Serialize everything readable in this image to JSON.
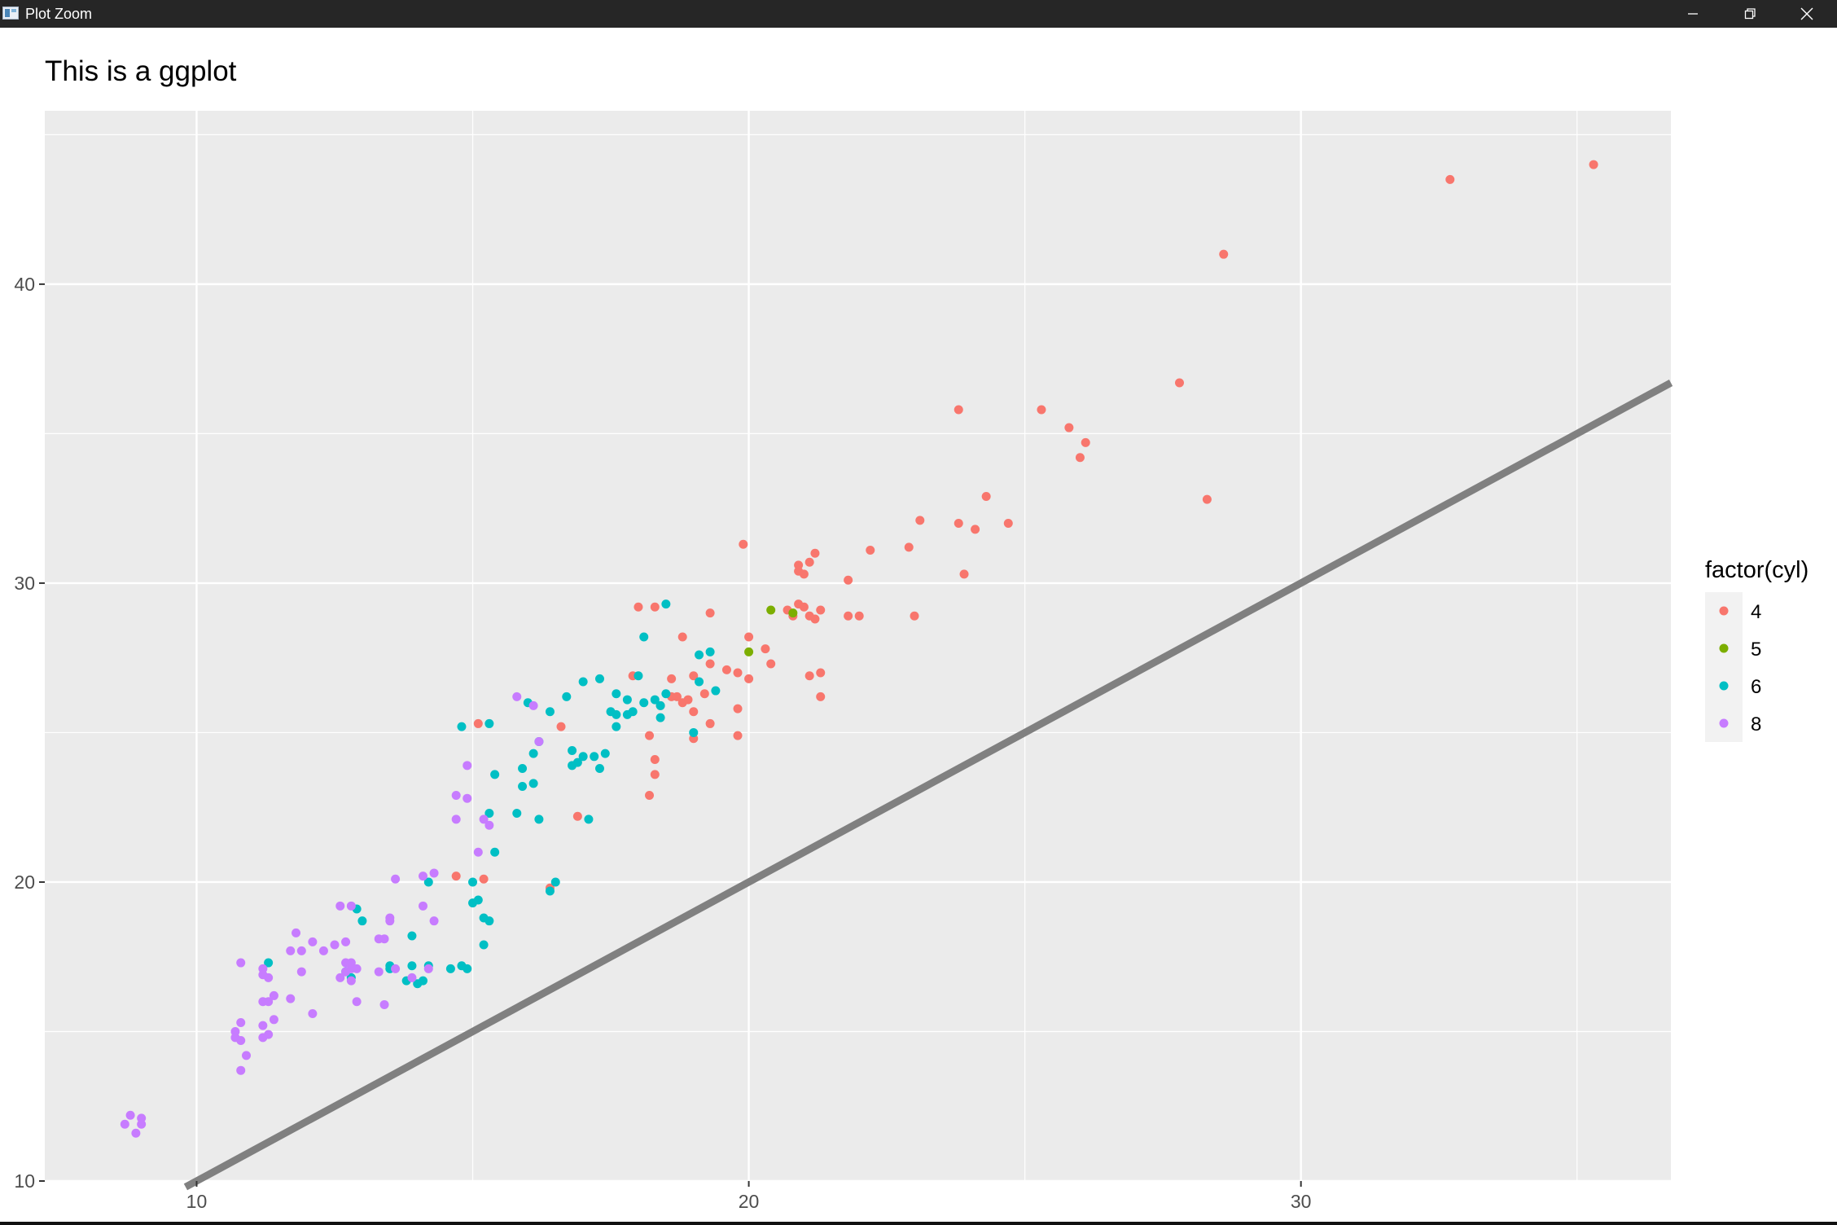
{
  "window": {
    "title": "Plot Zoom",
    "controls": {
      "minimize_icon": "minimize-icon",
      "maximize_icon": "restore-icon",
      "close_icon": "close-icon"
    }
  },
  "colors": {
    "panel": "#EBEBEB",
    "grid": "#FFFFFF",
    "line": "#808080",
    "axis_text": "#4D4D4D"
  },
  "chart_data": {
    "type": "scatter",
    "title": "This is a ggplot",
    "subtitle": "",
    "xlabel": "",
    "ylabel": "",
    "xlim": [
      7.25,
      36.7
    ],
    "ylim": [
      10,
      45.8
    ],
    "xticks": [
      10,
      20,
      30
    ],
    "yticks": [
      10,
      20,
      30,
      40
    ],
    "grid": true,
    "reference_line": {
      "slope": 1,
      "intercept": 0,
      "color": "#808080",
      "from": [
        9.8,
        9.8
      ],
      "to": [
        36.7,
        36.7
      ]
    },
    "legend": {
      "title": "factor(cyl)",
      "position": "right",
      "entries": [
        {
          "label": "4",
          "color": "#F8766D"
        },
        {
          "label": "5",
          "color": "#7CAE00"
        },
        {
          "label": "6",
          "color": "#00BFC4"
        },
        {
          "label": "8",
          "color": "#C77CFF"
        }
      ]
    },
    "series": [
      {
        "name": "4",
        "color": "#F8766D",
        "points": [
          [
            35.3,
            44.0
          ],
          [
            32.7,
            43.5
          ],
          [
            28.6,
            41.0
          ],
          [
            27.8,
            36.7
          ],
          [
            28.3,
            32.8
          ],
          [
            23.8,
            35.8
          ],
          [
            25.3,
            35.8
          ],
          [
            25.8,
            35.2
          ],
          [
            26.0,
            34.2
          ],
          [
            26.1,
            34.7
          ],
          [
            24.3,
            32.9
          ],
          [
            24.7,
            32.0
          ],
          [
            23.9,
            30.3
          ],
          [
            23.8,
            32.0
          ],
          [
            24.1,
            31.8
          ],
          [
            23.1,
            32.1
          ],
          [
            22.9,
            31.2
          ],
          [
            23.0,
            28.9
          ],
          [
            22.2,
            31.1
          ],
          [
            21.8,
            30.1
          ],
          [
            21.8,
            28.9
          ],
          [
            22.0,
            28.9
          ],
          [
            21.2,
            31.0
          ],
          [
            21.1,
            30.7
          ],
          [
            20.9,
            30.6
          ],
          [
            20.9,
            30.4
          ],
          [
            21.0,
            30.3
          ],
          [
            20.7,
            29.1
          ],
          [
            20.8,
            28.9
          ],
          [
            20.9,
            29.3
          ],
          [
            21.0,
            29.2
          ],
          [
            21.2,
            28.8
          ],
          [
            21.3,
            29.1
          ],
          [
            21.1,
            28.9
          ],
          [
            19.9,
            31.3
          ],
          [
            19.3,
            29.0
          ],
          [
            20.0,
            28.2
          ],
          [
            20.3,
            27.8
          ],
          [
            20.4,
            27.3
          ],
          [
            21.3,
            27.0
          ],
          [
            21.1,
            26.9
          ],
          [
            21.3,
            26.2
          ],
          [
            20.0,
            26.8
          ],
          [
            19.8,
            27.0
          ],
          [
            19.6,
            27.1
          ],
          [
            19.3,
            27.3
          ],
          [
            19.2,
            26.3
          ],
          [
            18.9,
            26.1
          ],
          [
            18.6,
            26.8
          ],
          [
            18.4,
            25.9
          ],
          [
            18.7,
            26.2
          ],
          [
            18.8,
            26.0
          ],
          [
            19.0,
            25.7
          ],
          [
            19.0,
            26.9
          ],
          [
            19.3,
            25.3
          ],
          [
            19.8,
            25.8
          ],
          [
            19.8,
            24.9
          ],
          [
            19.0,
            24.8
          ],
          [
            18.3,
            24.1
          ],
          [
            18.2,
            22.9
          ],
          [
            18.3,
            23.6
          ],
          [
            18.2,
            24.9
          ],
          [
            18.6,
            26.2
          ],
          [
            17.9,
            26.9
          ],
          [
            18.0,
            29.2
          ],
          [
            18.3,
            29.2
          ],
          [
            18.8,
            28.2
          ],
          [
            16.6,
            25.2
          ],
          [
            16.9,
            22.2
          ],
          [
            16.4,
            19.8
          ],
          [
            15.2,
            20.1
          ],
          [
            14.7,
            20.2
          ],
          [
            15.1,
            25.3
          ]
        ]
      },
      {
        "name": "5",
        "color": "#7CAE00",
        "points": [
          [
            20.4,
            29.1
          ],
          [
            20.0,
            27.7
          ],
          [
            20.8,
            29.0
          ]
        ]
      },
      {
        "name": "6",
        "color": "#00BFC4",
        "points": [
          [
            18.5,
            29.3
          ],
          [
            18.1,
            28.2
          ],
          [
            19.3,
            27.7
          ],
          [
            19.1,
            27.6
          ],
          [
            19.1,
            26.7
          ],
          [
            18.5,
            26.3
          ],
          [
            18.0,
            26.9
          ],
          [
            17.3,
            26.8
          ],
          [
            17.0,
            26.7
          ],
          [
            16.7,
            26.2
          ],
          [
            17.6,
            26.3
          ],
          [
            17.8,
            26.1
          ],
          [
            18.1,
            26.0
          ],
          [
            18.3,
            26.1
          ],
          [
            17.9,
            25.7
          ],
          [
            17.6,
            25.6
          ],
          [
            17.8,
            25.6
          ],
          [
            18.4,
            25.5
          ],
          [
            18.4,
            25.9
          ],
          [
            19.4,
            26.4
          ],
          [
            19.0,
            25.0
          ],
          [
            17.6,
            25.2
          ],
          [
            17.5,
            25.7
          ],
          [
            16.0,
            26.0
          ],
          [
            16.4,
            25.7
          ],
          [
            15.3,
            25.3
          ],
          [
            14.8,
            25.2
          ],
          [
            16.2,
            24.7
          ],
          [
            16.8,
            24.4
          ],
          [
            17.3,
            23.8
          ],
          [
            17.4,
            24.3
          ],
          [
            17.2,
            24.2
          ],
          [
            17.0,
            24.2
          ],
          [
            16.8,
            23.9
          ],
          [
            16.9,
            24.0
          ],
          [
            16.1,
            24.3
          ],
          [
            15.9,
            23.8
          ],
          [
            15.9,
            23.2
          ],
          [
            16.1,
            23.3
          ],
          [
            15.4,
            23.6
          ],
          [
            15.3,
            22.3
          ],
          [
            15.8,
            22.3
          ],
          [
            16.2,
            22.1
          ],
          [
            17.1,
            22.1
          ],
          [
            15.4,
            21.0
          ],
          [
            15.0,
            20.0
          ],
          [
            14.2,
            20.0
          ],
          [
            16.5,
            20.0
          ],
          [
            16.4,
            19.7
          ],
          [
            15.0,
            19.3
          ],
          [
            15.1,
            19.4
          ],
          [
            15.2,
            18.8
          ],
          [
            15.3,
            18.7
          ],
          [
            12.9,
            19.1
          ],
          [
            13.0,
            18.7
          ],
          [
            13.9,
            18.2
          ],
          [
            15.2,
            17.9
          ],
          [
            14.9,
            17.1
          ],
          [
            14.8,
            17.2
          ],
          [
            14.6,
            17.1
          ],
          [
            14.2,
            17.2
          ],
          [
            13.5,
            17.2
          ],
          [
            13.9,
            17.2
          ],
          [
            13.5,
            17.1
          ],
          [
            13.8,
            16.7
          ],
          [
            14.0,
            16.6
          ],
          [
            14.1,
            16.7
          ],
          [
            12.8,
            16.8
          ],
          [
            12.7,
            17.0
          ],
          [
            11.3,
            17.3
          ]
        ]
      },
      {
        "name": "8",
        "color": "#C77CFF",
        "points": [
          [
            15.8,
            26.2
          ],
          [
            16.1,
            25.9
          ],
          [
            16.2,
            24.7
          ],
          [
            14.9,
            23.9
          ],
          [
            14.7,
            22.9
          ],
          [
            14.9,
            22.8
          ],
          [
            14.7,
            22.1
          ],
          [
            15.2,
            22.1
          ],
          [
            15.3,
            21.9
          ],
          [
            15.1,
            21.0
          ],
          [
            14.3,
            20.3
          ],
          [
            14.1,
            20.2
          ],
          [
            13.6,
            20.1
          ],
          [
            14.1,
            19.2
          ],
          [
            12.8,
            19.2
          ],
          [
            12.6,
            19.2
          ],
          [
            14.3,
            18.7
          ],
          [
            13.5,
            18.8
          ],
          [
            13.5,
            18.7
          ],
          [
            13.4,
            18.1
          ],
          [
            13.3,
            18.1
          ],
          [
            12.7,
            18.0
          ],
          [
            12.1,
            18.0
          ],
          [
            11.8,
            18.3
          ],
          [
            12.5,
            17.9
          ],
          [
            12.3,
            17.7
          ],
          [
            11.9,
            17.7
          ],
          [
            11.7,
            17.7
          ],
          [
            10.8,
            17.3
          ],
          [
            11.2,
            17.1
          ],
          [
            11.3,
            16.8
          ],
          [
            11.2,
            16.9
          ],
          [
            11.9,
            17.0
          ],
          [
            12.7,
            17.3
          ],
          [
            12.8,
            17.3
          ],
          [
            12.8,
            17.1
          ],
          [
            12.7,
            17.0
          ],
          [
            12.9,
            17.1
          ],
          [
            13.3,
            17.0
          ],
          [
            13.6,
            17.1
          ],
          [
            14.2,
            17.1
          ],
          [
            13.9,
            16.8
          ],
          [
            12.6,
            16.8
          ],
          [
            12.8,
            16.7
          ],
          [
            12.9,
            16.0
          ],
          [
            13.4,
            15.9
          ],
          [
            12.1,
            15.6
          ],
          [
            11.7,
            16.1
          ],
          [
            11.4,
            16.2
          ],
          [
            11.3,
            16.0
          ],
          [
            11.2,
            16.0
          ],
          [
            11.4,
            15.4
          ],
          [
            11.2,
            15.2
          ],
          [
            10.8,
            15.3
          ],
          [
            10.7,
            15.0
          ],
          [
            10.7,
            14.8
          ],
          [
            10.8,
            14.7
          ],
          [
            11.2,
            14.8
          ],
          [
            11.3,
            14.9
          ],
          [
            10.9,
            14.2
          ],
          [
            10.8,
            13.7
          ],
          [
            8.8,
            12.2
          ],
          [
            8.7,
            11.9
          ],
          [
            9.0,
            11.9
          ],
          [
            9.0,
            12.1
          ],
          [
            8.9,
            11.6
          ]
        ]
      }
    ]
  }
}
